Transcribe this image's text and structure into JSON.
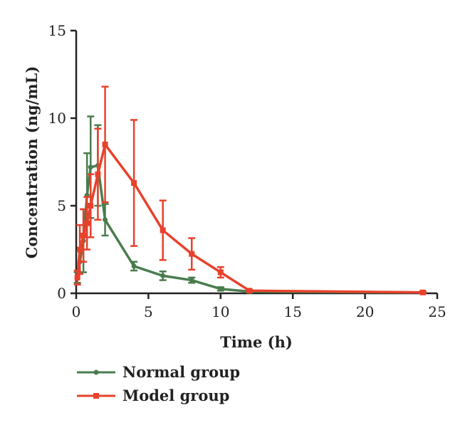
{
  "chart_data": {
    "type": "line",
    "xlabel": "Time (h)",
    "ylabel": "Concentration (ng/mL)",
    "xlim": [
      0,
      25
    ],
    "ylim": [
      0,
      15
    ],
    "xticks": [
      0,
      5,
      10,
      15,
      20,
      25
    ],
    "yticks": [
      0,
      5,
      10,
      15
    ],
    "x_tick_labels": [
      "0",
      "5",
      "10",
      "15",
      "20",
      "25"
    ],
    "y_tick_labels": [
      "0",
      "5",
      "10",
      "15"
    ],
    "grid": false,
    "legend_position": "bottom-left",
    "series": [
      {
        "name": "Normal group",
        "color": "#4a7c4e",
        "marker": "circle",
        "x": [
          0.083,
          0.25,
          0.5,
          0.75,
          1.0,
          1.5,
          2.0,
          4.0,
          6.0,
          8.0,
          10.0,
          12.0,
          24.0
        ],
        "y": [
          0.9,
          1.8,
          3.0,
          5.6,
          7.2,
          7.3,
          4.2,
          1.55,
          1.0,
          0.75,
          0.25,
          0.1,
          0.05
        ],
        "error": [
          0.3,
          0.6,
          1.8,
          2.4,
          2.9,
          2.3,
          0.9,
          0.25,
          0.25,
          0.15,
          0.1,
          0.05,
          0.05
        ]
      },
      {
        "name": "Model group",
        "color": "#e8412c",
        "marker": "square",
        "x": [
          0.083,
          0.25,
          0.5,
          0.75,
          1.0,
          1.5,
          2.0,
          4.0,
          6.0,
          8.0,
          10.0,
          12.0,
          24.0
        ],
        "y": [
          0.9,
          2.5,
          3.3,
          4.0,
          5.0,
          6.8,
          8.5,
          6.3,
          3.6,
          2.25,
          1.2,
          0.15,
          0.05
        ],
        "error": [
          0.4,
          1.4,
          1.5,
          1.5,
          1.8,
          2.6,
          3.3,
          3.6,
          1.7,
          0.9,
          0.3,
          0.05,
          0.05
        ]
      }
    ]
  }
}
